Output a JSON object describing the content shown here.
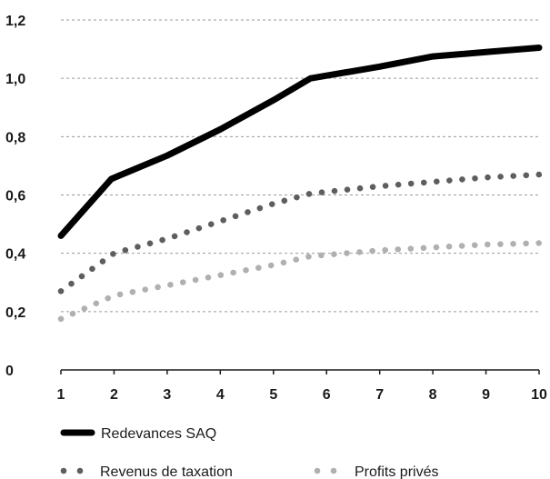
{
  "chart_data": {
    "type": "line",
    "x": [
      1,
      2,
      3,
      4,
      5,
      6,
      7,
      8,
      9,
      10
    ],
    "ylim": [
      0,
      1.2
    ],
    "yticks": [
      "0",
      "0,2",
      "0,4",
      "0,6",
      "0,8",
      "1,0",
      "1,2"
    ],
    "xticks": [
      "1",
      "2",
      "3",
      "4",
      "5",
      "6",
      "7",
      "8",
      "9",
      "10"
    ],
    "grid": "horizontal dashed",
    "legend_position": "bottom-left",
    "series": [
      {
        "name": "Redevances SAQ",
        "style": "solid-thick",
        "color": "#000000",
        "points": [
          [
            1,
            0.46
          ],
          [
            1.95,
            0.655
          ],
          [
            3,
            0.735
          ],
          [
            4,
            0.825
          ],
          [
            5,
            0.925
          ],
          [
            5.7,
            1.0
          ],
          [
            7,
            1.04
          ],
          [
            8,
            1.075
          ],
          [
            9,
            1.09
          ],
          [
            10,
            1.105
          ]
        ]
      },
      {
        "name": "Revenus de taxation",
        "style": "dotted",
        "color": "#5e5e5e",
        "points": [
          [
            1,
            0.27
          ],
          [
            2,
            0.4
          ],
          [
            3,
            0.45
          ],
          [
            4,
            0.51
          ],
          [
            5,
            0.57
          ],
          [
            5.7,
            0.605
          ],
          [
            7,
            0.63
          ],
          [
            8,
            0.645
          ],
          [
            9,
            0.66
          ],
          [
            10,
            0.67
          ]
        ]
      },
      {
        "name": "Profits privés",
        "style": "dotted",
        "color": "#b0b0b0",
        "points": [
          [
            1,
            0.175
          ],
          [
            2,
            0.255
          ],
          [
            3,
            0.29
          ],
          [
            4,
            0.325
          ],
          [
            5,
            0.36
          ],
          [
            5.7,
            0.39
          ],
          [
            7,
            0.41
          ],
          [
            8,
            0.42
          ],
          [
            9,
            0.43
          ],
          [
            10,
            0.435
          ]
        ]
      }
    ]
  }
}
